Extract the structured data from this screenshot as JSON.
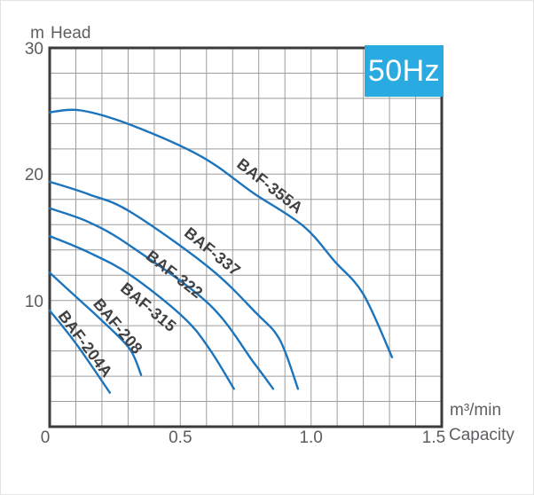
{
  "y_axis": {
    "unit": "m",
    "label": "Head",
    "tick_values": [
      30,
      20,
      10
    ]
  },
  "x_axis": {
    "unit": "m³/min",
    "label": "Capacity",
    "tick_labels": [
      "0",
      "0.5",
      "1.0",
      "1.5"
    ],
    "tick_values": [
      0,
      0.5,
      1.0,
      1.5
    ]
  },
  "badge": {
    "label": "50Hz"
  },
  "colors": {
    "curve": "#1C75BC",
    "badge_bg": "#29ABE2",
    "badge_text": "#FFFFFF",
    "grid": "#9C9C9E",
    "frame": "#3B3B3D",
    "axis_text": "#5B5C5E",
    "curve_label": "#414042"
  },
  "chart_data": {
    "type": "line",
    "title": "Pump head-capacity performance curves at 50Hz",
    "xlabel": "Capacity (m³/min)",
    "ylabel": "Head (m)",
    "xlim": [
      0,
      1.5
    ],
    "ylim": [
      0,
      30
    ],
    "x_tick_step": 0.5,
    "y_tick_step": 10,
    "x_gridline_step": 0.1,
    "y_gridline_step": 2,
    "grid": true,
    "legend": "labels-along-curves",
    "series": [
      {
        "name": "BAF-355A",
        "points": [
          [
            0,
            24.9
          ],
          [
            0.12,
            25.05
          ],
          [
            0.31,
            23.9
          ],
          [
            0.58,
            21.4
          ],
          [
            0.78,
            18.5
          ],
          [
            0.97,
            15.9
          ],
          [
            1.09,
            13.1
          ],
          [
            1.2,
            10.5
          ],
          [
            1.31,
            5.5
          ]
        ],
        "label": {
          "at": [
            0.84,
            19.0
          ],
          "angle": 38
        }
      },
      {
        "name": "BAF-337",
        "points": [
          [
            0,
            19.4
          ],
          [
            0.15,
            18.4
          ],
          [
            0.31,
            17.0
          ],
          [
            0.61,
            12.6
          ],
          [
            0.79,
            9.0
          ],
          [
            0.88,
            6.9
          ],
          [
            0.95,
            3.0
          ]
        ],
        "label": {
          "at": [
            0.62,
            13.8
          ],
          "angle": 39
        }
      },
      {
        "name": "BAF-322",
        "points": [
          [
            0,
            17.3
          ],
          [
            0.15,
            16.2
          ],
          [
            0.31,
            14.3
          ],
          [
            0.61,
            9.7
          ],
          [
            0.78,
            5.1
          ],
          [
            0.855,
            3.0
          ]
        ],
        "label": {
          "at": [
            0.475,
            12.0
          ],
          "angle": 38
        }
      },
      {
        "name": "BAF-315",
        "points": [
          [
            0,
            15.1
          ],
          [
            0.15,
            13.8
          ],
          [
            0.31,
            12.0
          ],
          [
            0.51,
            8.7
          ],
          [
            0.61,
            6.2
          ],
          [
            0.705,
            3.0
          ]
        ],
        "label": {
          "at": [
            0.375,
            9.4
          ],
          "angle": 40
        }
      },
      {
        "name": "BAF-208",
        "points": [
          [
            0,
            12.2
          ],
          [
            0.1,
            10.3
          ],
          [
            0.2,
            8.4
          ],
          [
            0.305,
            6.2
          ],
          [
            0.35,
            4.1
          ]
        ],
        "label": {
          "at": [
            0.258,
            7.9
          ],
          "angle": 50
        }
      },
      {
        "name": "BAF-204A",
        "points": [
          [
            0,
            9.2
          ],
          [
            0.1,
            6.6
          ],
          [
            0.23,
            2.7
          ]
        ],
        "label": {
          "at": [
            0.133,
            6.5
          ],
          "angle": 53
        }
      }
    ]
  }
}
